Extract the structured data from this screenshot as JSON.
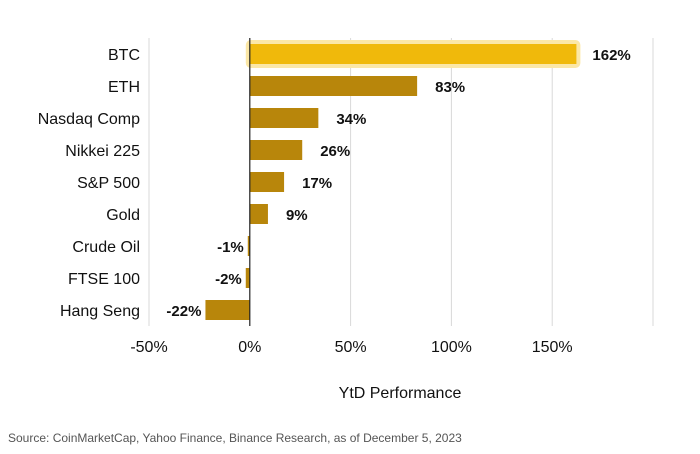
{
  "chart_data": {
    "type": "bar",
    "orientation": "horizontal",
    "categories": [
      "BTC",
      "ETH",
      "Nasdaq Comp",
      "Nikkei 225",
      "S&P 500",
      "Gold",
      "Crude Oil",
      "FTSE 100",
      "Hang Seng"
    ],
    "values": [
      162,
      83,
      34,
      26,
      17,
      9,
      -1,
      -2,
      -22
    ],
    "value_labels": [
      "162%",
      "83%",
      "34%",
      "26%",
      "17%",
      "9%",
      "-1%",
      "-2%",
      "-22%"
    ],
    "highlight_category": "BTC",
    "xlabel": "YtD Performance",
    "xlim": [
      -50,
      200
    ],
    "xticks": [
      -50,
      0,
      50,
      100,
      150
    ],
    "xtick_labels": [
      "-50%",
      "0%",
      "50%",
      "100%",
      "150%"
    ],
    "grid": "vertical",
    "colors": {
      "highlight": "#f0b90b",
      "highlight_glow": "#fbe7a6",
      "bar": "#b8860b",
      "grid": "#d9d9d9",
      "zero_line": "#222222"
    }
  },
  "source_note": "Source: CoinMarketCap, Yahoo Finance, Binance Research, as of December 5, 2023"
}
